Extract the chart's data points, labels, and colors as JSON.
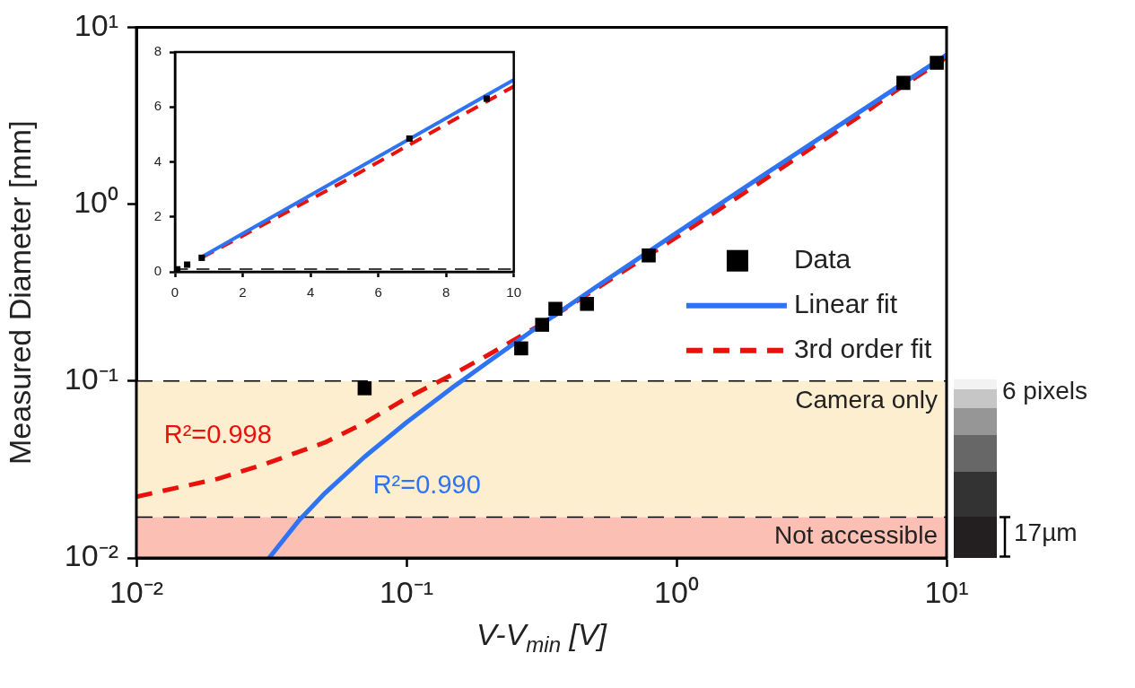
{
  "chart_data": [
    {
      "type": "scatter",
      "xlabel": "V-V$_{min}$ [V]",
      "ylabel": "Measured Diameter [mm]",
      "log": "xy",
      "xlim": [
        0.01,
        10
      ],
      "ylim": [
        0.01,
        10
      ],
      "xticks": [
        {
          "value": 0.01,
          "label": "10⁻²"
        },
        {
          "value": 0.1,
          "label": "10⁻¹"
        },
        {
          "value": 1,
          "label": "10⁰"
        },
        {
          "value": 10,
          "label": "10¹"
        }
      ],
      "yticks": [
        {
          "value": 0.01,
          "label": "10⁻²"
        },
        {
          "value": 0.1,
          "label": "10⁻¹"
        },
        {
          "value": 1,
          "label": "10⁰"
        },
        {
          "value": 10,
          "label": "10¹"
        }
      ],
      "series": [
        {
          "name": "Data",
          "type": "scatter",
          "color": "#000000",
          "marker": "square",
          "x": [
            0.07,
            0.266,
            0.318,
            0.356,
            0.466,
            0.789,
            6.92,
            9.2
          ],
          "values": [
            0.091,
            0.153,
            0.208,
            0.256,
            0.273,
            0.513,
            4.85,
            6.3
          ]
        },
        {
          "name": "Linear fit",
          "type": "line",
          "color": "#2f73f5",
          "line_style": "solid",
          "x": [
            0.031,
            0.04,
            0.05,
            0.07,
            0.1,
            0.15,
            0.2,
            0.3,
            0.5,
            1,
            2,
            5,
            10
          ],
          "values": [
            0.01,
            0.0163,
            0.0233,
            0.0373,
            0.0583,
            0.0933,
            0.128,
            0.198,
            0.338,
            0.688,
            1.39,
            3.49,
            6.99
          ]
        },
        {
          "name": "3rd order fit",
          "type": "line",
          "color": "#e8120c",
          "line_style": "dashed",
          "x": [
            0.01,
            0.02,
            0.03,
            0.05,
            0.07,
            0.1,
            0.15,
            0.2,
            0.3,
            0.5,
            1,
            2,
            3,
            5,
            7,
            10
          ],
          "values": [
            0.0222,
            0.028,
            0.034,
            0.045,
            0.058,
            0.08,
            0.11,
            0.14,
            0.2,
            0.33,
            0.65,
            1.3,
            1.97,
            3.3,
            4.75,
            6.75
          ]
        }
      ],
      "bands": [
        {
          "axis": "y",
          "from": 0.017,
          "to": 0.1,
          "label": "Camera only",
          "color": "#fdeecf"
        },
        {
          "axis": "y",
          "from": 0.01,
          "to": 0.017,
          "label": "Not accessible",
          "color": "#fbbfb3"
        }
      ],
      "ref_lines": [
        {
          "axis": "y",
          "value": 0.1,
          "line_style": "dashed",
          "color": "#000000"
        },
        {
          "axis": "y",
          "value": 0.017,
          "line_style": "dashed",
          "color": "#000000"
        }
      ],
      "annotations": [
        "R²=0.998",
        "R²=0.990",
        "6 pixels",
        "17µm"
      ],
      "legend": "right"
    },
    {
      "type": "scatter",
      "xlim": [
        0,
        10
      ],
      "ylim": [
        0,
        8
      ],
      "xticks": [
        0,
        2,
        4,
        6,
        8,
        10
      ],
      "yticks": [
        0,
        2,
        4,
        6,
        8
      ],
      "series": [
        {
          "type": "scatter",
          "color": "#000000",
          "marker": "square",
          "x": [
            0.07,
            0.36,
            0.79,
            6.92,
            9.2
          ],
          "values": [
            0.09,
            0.26,
            0.51,
            4.85,
            6.3
          ]
        },
        {
          "type": "line",
          "color": "#2f73f5",
          "line_style": "solid",
          "x": [
            0.8,
            10
          ],
          "values": [
            0.55,
            6.99
          ]
        },
        {
          "type": "line",
          "color": "#e8120c",
          "line_style": "dashed",
          "x": [
            0.8,
            5,
            10
          ],
          "values": [
            0.52,
            3.3,
            6.75
          ]
        }
      ],
      "ref_lines": [
        {
          "axis": "y",
          "value": 0.1,
          "line_style": "dashed",
          "color": "#000000"
        }
      ]
    }
  ]
}
